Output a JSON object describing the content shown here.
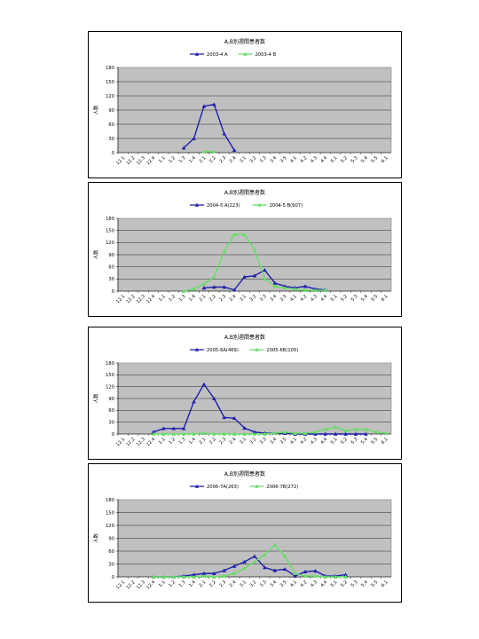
{
  "chart_data": [
    {
      "type": "line",
      "title": "A,B別週間患者数",
      "ylabel": "人数",
      "ylim": [
        0,
        180
      ],
      "yticks": [
        0,
        30,
        60,
        90,
        120,
        150,
        180
      ],
      "categories": [
        "12.1",
        "12.2",
        "12.3",
        "12.4",
        "1.1",
        "1.2",
        "1.3",
        "1.4",
        "2.1",
        "2.2",
        "2.3",
        "2.4",
        "3.1",
        "3.2",
        "3.3",
        "3.4",
        "3.5",
        "4.1",
        "4.2",
        "4.3",
        "4.4",
        "5.1",
        "5.2",
        "5.3",
        "5.4",
        "5.5",
        "6.1"
      ],
      "series": [
        {
          "name": "2003-4 A",
          "color": "#1f1faa",
          "values": [
            null,
            null,
            null,
            null,
            null,
            null,
            10,
            30,
            98,
            102,
            40,
            5,
            null,
            null,
            null,
            null,
            null,
            null,
            null,
            null,
            null,
            null,
            null,
            null,
            null,
            null,
            null
          ]
        },
        {
          "name": "2003-4 B",
          "color": "#66dd66",
          "values": [
            null,
            null,
            null,
            null,
            null,
            null,
            null,
            null,
            2,
            2,
            null,
            null,
            null,
            null,
            null,
            null,
            null,
            null,
            null,
            null,
            null,
            null,
            null,
            null,
            null,
            null,
            null
          ]
        }
      ]
    },
    {
      "type": "line",
      "title": "A,B別週間患者数",
      "ylabel": "人数",
      "ylim": [
        0,
        180
      ],
      "yticks": [
        0,
        30,
        60,
        90,
        120,
        150,
        180
      ],
      "categories": [
        "12.1",
        "12.2",
        "12.3",
        "12.4",
        "1.1",
        "1.2",
        "1.3",
        "1.4",
        "2.1",
        "2.2",
        "2.3",
        "2.4",
        "3.1",
        "3.2",
        "3.3",
        "3.4",
        "3.5",
        "4.1",
        "4.2",
        "4.3",
        "4.4",
        "5.1",
        "5.2",
        "5.3",
        "5.4",
        "5.5",
        "6.1"
      ],
      "series": [
        {
          "name": "2004-5 A(223)",
          "color": "#1f1faa",
          "values": [
            null,
            null,
            null,
            null,
            null,
            null,
            null,
            null,
            8,
            10,
            10,
            3,
            35,
            38,
            52,
            20,
            12,
            8,
            12,
            5,
            3,
            null,
            null,
            null,
            null,
            null,
            null
          ]
        },
        {
          "name": "2004-5 B(607)",
          "color": "#66dd66",
          "values": [
            null,
            null,
            null,
            null,
            null,
            null,
            0,
            5,
            18,
            35,
            98,
            140,
            140,
            102,
            30,
            12,
            8,
            5,
            2,
            2,
            2,
            null,
            null,
            null,
            null,
            null,
            null
          ]
        }
      ]
    },
    {
      "type": "line",
      "title": "A,B別週間患者数",
      "ylabel": "人数",
      "ylim": [
        0,
        180
      ],
      "yticks": [
        0,
        30,
        60,
        90,
        120,
        150,
        180
      ],
      "categories": [
        "12.1",
        "12.2",
        "12.3",
        "12.4",
        "1.1",
        "1.2",
        "1.3",
        "1.4",
        "2.1",
        "2.2",
        "2.3",
        "2.4",
        "3.1",
        "3.2",
        "3.3",
        "3.4",
        "3.5",
        "4.1",
        "4.2",
        "4.3",
        "4.4",
        "5.1",
        "5.2",
        "5.3",
        "5.4",
        "5.5",
        "6.1"
      ],
      "series": [
        {
          "name": "2005-6A(469)",
          "color": "#1f1faa",
          "values": [
            null,
            null,
            null,
            5,
            14,
            14,
            14,
            82,
            126,
            90,
            42,
            40,
            15,
            5,
            2,
            2,
            2,
            0,
            0,
            0,
            0,
            0,
            0,
            0,
            0,
            null,
            null
          ]
        },
        {
          "name": "2005-6B(105)",
          "color": "#66dd66",
          "values": [
            null,
            null,
            null,
            0,
            0,
            0,
            0,
            0,
            2,
            0,
            0,
            0,
            0,
            0,
            0,
            2,
            5,
            2,
            2,
            5,
            12,
            18,
            8,
            12,
            12,
            5,
            2
          ]
        }
      ]
    },
    {
      "type": "line",
      "title": "A,B別週間患者数",
      "ylabel": "人数",
      "ylim": [
        0,
        180
      ],
      "yticks": [
        0,
        30,
        60,
        90,
        120,
        150,
        180
      ],
      "categories": [
        "12.1",
        "12.2",
        "12.3",
        "12.4",
        "1.1",
        "1.2",
        "1.3",
        "1.4",
        "2.1",
        "2.2",
        "2.3",
        "2.4",
        "3.1",
        "3.2",
        "3.3",
        "3.4",
        "3.5",
        "4.1",
        "4.2",
        "4.3",
        "4.4",
        "5.1",
        "5.2",
        "5.3",
        "5.4",
        "5.5",
        "6.1"
      ],
      "series": [
        {
          "name": "2006-7A(263)",
          "color": "#1f1faa",
          "values": [
            null,
            null,
            null,
            0,
            0,
            0,
            2,
            5,
            8,
            8,
            15,
            25,
            35,
            48,
            22,
            15,
            18,
            2,
            12,
            14,
            2,
            2,
            5,
            null,
            null,
            null,
            null
          ]
        },
        {
          "name": "2006-7B(272)",
          "color": "#66dd66",
          "values": [
            null,
            null,
            null,
            0,
            0,
            0,
            0,
            0,
            2,
            0,
            2,
            8,
            20,
            35,
            52,
            75,
            48,
            8,
            2,
            2,
            0,
            0,
            0,
            null,
            null,
            null,
            null
          ]
        }
      ]
    }
  ]
}
